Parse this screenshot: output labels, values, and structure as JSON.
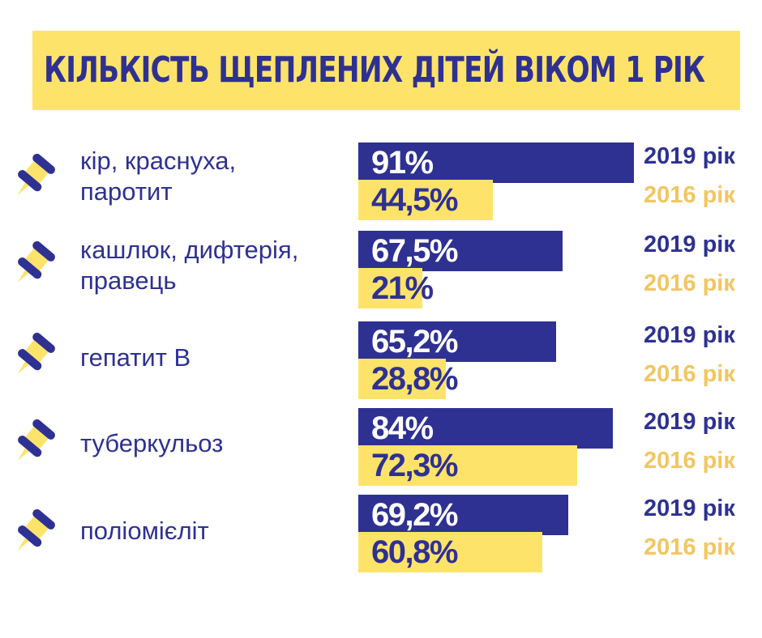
{
  "title": "КІЛЬКІСТЬ ЩЕПЛЕНИХ ДІТЕЙ ВІКОМ 1 РІК",
  "colors": {
    "accent_2019": "#2e3192",
    "accent_2016": "#fde36a",
    "year_2016_text": "#f2c660"
  },
  "icons": {
    "row_icon": "pushpin-icon"
  },
  "chart_data": {
    "type": "bar",
    "orientation": "horizontal",
    "title": "КІЛЬКІСТЬ ЩЕПЛЕНИХ ДІТЕЙ ВІКОМ 1 РІК",
    "categories": [
      [
        "кір, краснуха,",
        "паротит"
      ],
      [
        "кашлюк, дифтерія,",
        "правець"
      ],
      [
        "гепатит В"
      ],
      [
        "туберкульоз"
      ],
      [
        "поліомієліт"
      ]
    ],
    "series": [
      {
        "name": "2019 рік",
        "values": [
          91,
          67.5,
          65.2,
          84,
          69.2
        ],
        "labels": [
          "91%",
          "67,5%",
          "65,2%",
          "84%",
          "69,2%"
        ],
        "color": "#2e3192"
      },
      {
        "name": "2016 рік",
        "values": [
          44.5,
          21,
          28.8,
          72.3,
          60.8
        ],
        "labels": [
          "44,5%",
          "21%",
          "28,8%",
          "72,3%",
          "60,8%"
        ],
        "color": "#fde36a"
      }
    ],
    "xlim": [
      0,
      100
    ],
    "grid": false
  }
}
